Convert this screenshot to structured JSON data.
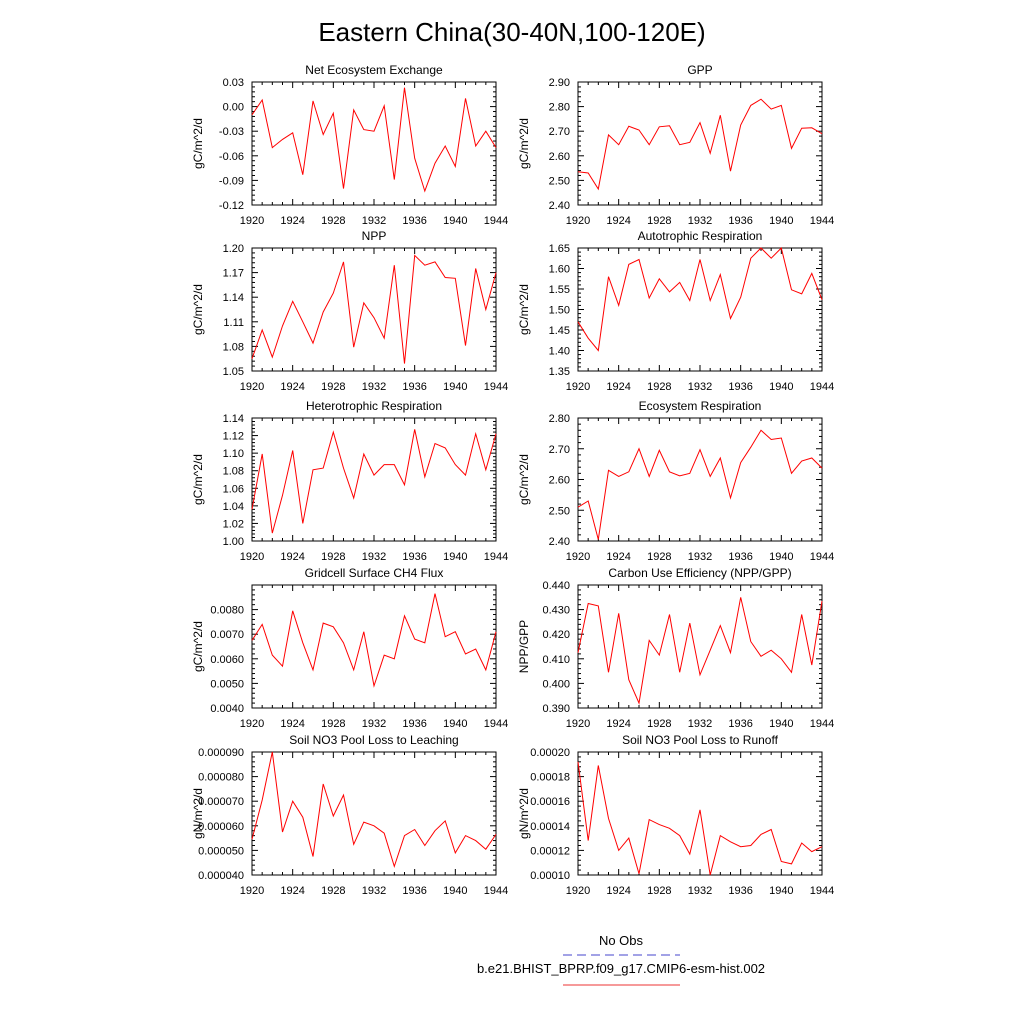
{
  "figure": {
    "title": "Eastern China(30-40N,100-120E)",
    "legend": {
      "entries": [
        {
          "label": "No Obs",
          "color": "#4444cc",
          "dash": true
        },
        {
          "label": "b.e21.BHIST_BPRP.f09_g17.CMIP6-esm-hist.002",
          "color": "#ee3333",
          "dash": false
        }
      ]
    }
  },
  "chart_data": [
    {
      "type": "line",
      "title": "Net Ecosystem Exchange",
      "xlabel": "",
      "ylabel": "gC/m^2/d",
      "xlim": [
        1920,
        1944
      ],
      "ylim": [
        -0.12,
        0.03
      ],
      "yticks": [
        -0.12,
        -0.09,
        -0.06,
        -0.03,
        0.0,
        0.03
      ],
      "yticklabels": [
        "-0.12",
        "-0.09",
        "-0.06",
        "-0.03",
        "0.00",
        "0.03"
      ],
      "xticks": [
        1920,
        1924,
        1928,
        1932,
        1936,
        1940,
        1944
      ],
      "series": [
        {
          "color": "#ff0000",
          "x": [
            1920,
            1921,
            1922,
            1923,
            1924,
            1925,
            1926,
            1927,
            1928,
            1929,
            1930,
            1931,
            1932,
            1933,
            1934,
            1935,
            1936,
            1937,
            1938,
            1939,
            1940,
            1941,
            1942,
            1943,
            1944
          ],
          "values": [
            -0.01,
            0.008,
            -0.05,
            -0.04,
            -0.032,
            -0.083,
            0.007,
            -0.034,
            -0.008,
            -0.1,
            -0.004,
            -0.028,
            -0.03,
            0.001,
            -0.089,
            0.023,
            -0.063,
            -0.103,
            -0.069,
            -0.048,
            -0.073,
            0.01,
            -0.048,
            -0.03,
            -0.05
          ]
        }
      ]
    },
    {
      "type": "line",
      "title": "GPP",
      "xlabel": "",
      "ylabel": "gC/m^2/d",
      "xlim": [
        1920,
        1944
      ],
      "ylim": [
        2.4,
        2.9
      ],
      "yticks": [
        2.4,
        2.5,
        2.6,
        2.7,
        2.8,
        2.9
      ],
      "yticklabels": [
        "2.40",
        "2.50",
        "2.60",
        "2.70",
        "2.80",
        "2.90"
      ],
      "xticks": [
        1920,
        1924,
        1928,
        1932,
        1936,
        1940,
        1944
      ],
      "series": [
        {
          "color": "#ff0000",
          "x": [
            1920,
            1921,
            1922,
            1923,
            1924,
            1925,
            1926,
            1927,
            1928,
            1929,
            1930,
            1931,
            1932,
            1933,
            1934,
            1935,
            1936,
            1937,
            1938,
            1939,
            1940,
            1941,
            1942,
            1943,
            1944
          ],
          "values": [
            2.535,
            2.53,
            2.465,
            2.685,
            2.645,
            2.72,
            2.705,
            2.645,
            2.718,
            2.722,
            2.645,
            2.655,
            2.735,
            2.61,
            2.765,
            2.538,
            2.725,
            2.805,
            2.83,
            2.79,
            2.805,
            2.63,
            2.712,
            2.714,
            2.69
          ]
        }
      ]
    },
    {
      "type": "line",
      "title": "NPP",
      "xlabel": "",
      "ylabel": "gC/m^2/d",
      "xlim": [
        1920,
        1944
      ],
      "ylim": [
        1.05,
        1.2
      ],
      "yticks": [
        1.05,
        1.08,
        1.11,
        1.14,
        1.17,
        1.2
      ],
      "yticklabels": [
        "1.05",
        "1.08",
        "1.11",
        "1.14",
        "1.17",
        "1.20"
      ],
      "xticks": [
        1920,
        1924,
        1928,
        1932,
        1936,
        1940,
        1944
      ],
      "series": [
        {
          "color": "#ff0000",
          "x": [
            1920,
            1921,
            1922,
            1923,
            1924,
            1925,
            1926,
            1927,
            1928,
            1929,
            1930,
            1931,
            1932,
            1933,
            1934,
            1935,
            1936,
            1937,
            1938,
            1939,
            1940,
            1941,
            1942,
            1943,
            1944
          ],
          "values": [
            1.065,
            1.1,
            1.067,
            1.105,
            1.135,
            1.11,
            1.084,
            1.122,
            1.145,
            1.183,
            1.079,
            1.133,
            1.115,
            1.09,
            1.179,
            1.059,
            1.191,
            1.179,
            1.183,
            1.164,
            1.163,
            1.081,
            1.175,
            1.125,
            1.17
          ]
        }
      ]
    },
    {
      "type": "line",
      "title": "Autotrophic Respiration",
      "xlabel": "",
      "ylabel": "gC/m^2/d",
      "xlim": [
        1920,
        1944
      ],
      "ylim": [
        1.35,
        1.65
      ],
      "yticks": [
        1.35,
        1.4,
        1.45,
        1.5,
        1.55,
        1.6,
        1.65
      ],
      "yticklabels": [
        "1.35",
        "1.40",
        "1.45",
        "1.50",
        "1.55",
        "1.60",
        "1.65"
      ],
      "xticks": [
        1920,
        1924,
        1928,
        1932,
        1936,
        1940,
        1944
      ],
      "series": [
        {
          "color": "#ff0000",
          "x": [
            1920,
            1921,
            1922,
            1923,
            1924,
            1925,
            1926,
            1927,
            1928,
            1929,
            1930,
            1931,
            1932,
            1933,
            1934,
            1935,
            1936,
            1937,
            1938,
            1939,
            1940,
            1941,
            1942,
            1943,
            1944
          ],
          "values": [
            1.47,
            1.43,
            1.4,
            1.58,
            1.51,
            1.61,
            1.622,
            1.528,
            1.575,
            1.543,
            1.566,
            1.522,
            1.622,
            1.522,
            1.585,
            1.478,
            1.53,
            1.625,
            1.65,
            1.625,
            1.65,
            1.548,
            1.538,
            1.588,
            1.524
          ]
        }
      ]
    },
    {
      "type": "line",
      "title": "Heterotrophic Respiration",
      "xlabel": "",
      "ylabel": "gC/m^2/d",
      "xlim": [
        1920,
        1944
      ],
      "ylim": [
        1.0,
        1.14
      ],
      "yticks": [
        1.0,
        1.02,
        1.04,
        1.06,
        1.08,
        1.1,
        1.12,
        1.14
      ],
      "yticklabels": [
        "1.00",
        "1.02",
        "1.04",
        "1.06",
        "1.08",
        "1.10",
        "1.12",
        "1.14"
      ],
      "xticks": [
        1920,
        1924,
        1928,
        1932,
        1936,
        1940,
        1944
      ],
      "series": [
        {
          "color": "#ff0000",
          "x": [
            1920,
            1921,
            1922,
            1923,
            1924,
            1925,
            1926,
            1927,
            1928,
            1929,
            1930,
            1931,
            1932,
            1933,
            1934,
            1935,
            1936,
            1937,
            1938,
            1939,
            1940,
            1941,
            1942,
            1943,
            1944
          ],
          "values": [
            1.036,
            1.099,
            1.009,
            1.052,
            1.103,
            1.02,
            1.081,
            1.083,
            1.124,
            1.083,
            1.049,
            1.099,
            1.075,
            1.087,
            1.087,
            1.064,
            1.127,
            1.073,
            1.111,
            1.106,
            1.087,
            1.075,
            1.122,
            1.081,
            1.122
          ]
        }
      ]
    },
    {
      "type": "line",
      "title": "Ecosystem Respiration",
      "xlabel": "",
      "ylabel": "gC/m^2/d",
      "xlim": [
        1920,
        1944
      ],
      "ylim": [
        2.4,
        2.8
      ],
      "yticks": [
        2.4,
        2.5,
        2.6,
        2.7,
        2.8
      ],
      "yticklabels": [
        "2.40",
        "2.50",
        "2.60",
        "2.70",
        "2.80"
      ],
      "xticks": [
        1920,
        1924,
        1928,
        1932,
        1936,
        1940,
        1944
      ],
      "series": [
        {
          "color": "#ff0000",
          "x": [
            1920,
            1921,
            1922,
            1923,
            1924,
            1925,
            1926,
            1927,
            1928,
            1929,
            1930,
            1931,
            1932,
            1933,
            1934,
            1935,
            1936,
            1937,
            1938,
            1939,
            1940,
            1941,
            1942,
            1943,
            1944
          ],
          "values": [
            2.51,
            2.53,
            2.405,
            2.63,
            2.61,
            2.625,
            2.7,
            2.61,
            2.695,
            2.625,
            2.612,
            2.62,
            2.697,
            2.61,
            2.67,
            2.54,
            2.655,
            2.705,
            2.76,
            2.73,
            2.735,
            2.62,
            2.66,
            2.67,
            2.637
          ]
        }
      ]
    },
    {
      "type": "line",
      "title": "Gridcell Surface CH4 Flux",
      "xlabel": "",
      "ylabel": "gC/m^2/d",
      "xlim": [
        1920,
        1944
      ],
      "ylim": [
        0.004,
        0.009
      ],
      "yticks": [
        0.004,
        0.005,
        0.006,
        0.007,
        0.008
      ],
      "yticklabels": [
        "0.0040",
        "0.0050",
        "0.0060",
        "0.0070",
        "0.0080"
      ],
      "xticks": [
        1920,
        1924,
        1928,
        1932,
        1936,
        1940,
        1944
      ],
      "series": [
        {
          "color": "#ff0000",
          "x": [
            1920,
            1921,
            1922,
            1923,
            1924,
            1925,
            1926,
            1927,
            1928,
            1929,
            1930,
            1931,
            1932,
            1933,
            1934,
            1935,
            1936,
            1937,
            1938,
            1939,
            1940,
            1941,
            1942,
            1943,
            1944
          ],
          "values": [
            0.00675,
            0.0074,
            0.00615,
            0.0057,
            0.00795,
            0.00665,
            0.00555,
            0.00745,
            0.0073,
            0.00665,
            0.00555,
            0.0071,
            0.0049,
            0.00615,
            0.006,
            0.00775,
            0.0068,
            0.00665,
            0.00865,
            0.0069,
            0.0071,
            0.0062,
            0.0064,
            0.00555,
            0.0071
          ]
        }
      ]
    },
    {
      "type": "line",
      "title": "Carbon Use Efficiency (NPP/GPP)",
      "xlabel": "",
      "ylabel": "NPP/GPP",
      "xlim": [
        1920,
        1944
      ],
      "ylim": [
        0.39,
        0.44
      ],
      "yticks": [
        0.39,
        0.4,
        0.41,
        0.42,
        0.43,
        0.44
      ],
      "yticklabels": [
        "0.390",
        "0.400",
        "0.410",
        "0.420",
        "0.430",
        "0.440"
      ],
      "xticks": [
        1920,
        1924,
        1928,
        1932,
        1936,
        1940,
        1944
      ],
      "series": [
        {
          "color": "#ff0000",
          "x": [
            1920,
            1921,
            1922,
            1923,
            1924,
            1925,
            1926,
            1927,
            1928,
            1929,
            1930,
            1931,
            1932,
            1933,
            1934,
            1935,
            1936,
            1937,
            1938,
            1939,
            1940,
            1941,
            1942,
            1943,
            1944
          ],
          "values": [
            0.4125,
            0.4325,
            0.4315,
            0.4045,
            0.4285,
            0.4015,
            0.392,
            0.4175,
            0.4115,
            0.428,
            0.4045,
            0.4245,
            0.4035,
            0.4135,
            0.4235,
            0.4125,
            0.435,
            0.417,
            0.411,
            0.4135,
            0.41,
            0.4045,
            0.428,
            0.4075,
            0.4335
          ]
        }
      ]
    },
    {
      "type": "line",
      "title": "Soil NO3 Pool Loss to Leaching",
      "xlabel": "",
      "ylabel": "gN/m^2/d",
      "xlim": [
        1920,
        1944
      ],
      "ylim": [
        4e-05,
        9e-05
      ],
      "yticks": [
        4e-05,
        5e-05,
        6e-05,
        7e-05,
        8e-05,
        9e-05
      ],
      "yticklabels": [
        "0.000040",
        "0.000050",
        "0.000060",
        "0.000070",
        "0.000080",
        "0.000090"
      ],
      "xticks": [
        1920,
        1924,
        1928,
        1932,
        1936,
        1940,
        1944
      ],
      "series": [
        {
          "color": "#ff0000",
          "x": [
            1920,
            1921,
            1922,
            1923,
            1924,
            1925,
            1926,
            1927,
            1928,
            1929,
            1930,
            1931,
            1932,
            1933,
            1934,
            1935,
            1936,
            1937,
            1938,
            1939,
            1940,
            1941,
            1942,
            1943,
            1944
          ],
          "values": [
            5.45e-05,
            7.05e-05,
            9e-05,
            5.75e-05,
            7e-05,
            6.35e-05,
            4.75e-05,
            7.7e-05,
            6.4e-05,
            7.25e-05,
            5.25e-05,
            6.15e-05,
            6e-05,
            5.7e-05,
            4.35e-05,
            5.6e-05,
            5.85e-05,
            5.2e-05,
            5.8e-05,
            6.2e-05,
            4.9e-05,
            5.6e-05,
            5.4e-05,
            5.05e-05,
            5.65e-05
          ]
        }
      ]
    },
    {
      "type": "line",
      "title": "Soil NO3 Pool Loss to Runoff",
      "xlabel": "",
      "ylabel": "gN/m^2/d",
      "xlim": [
        1920,
        1944
      ],
      "ylim": [
        0.0001,
        0.0002
      ],
      "yticks": [
        0.0001,
        0.00012,
        0.00014,
        0.00016,
        0.00018,
        0.0002
      ],
      "yticklabels": [
        "0.00010",
        "0.00012",
        "0.00014",
        "0.00016",
        "0.00018",
        "0.00020"
      ],
      "xticks": [
        1920,
        1924,
        1928,
        1932,
        1936,
        1940,
        1944
      ],
      "series": [
        {
          "color": "#ff0000",
          "x": [
            1920,
            1921,
            1922,
            1923,
            1924,
            1925,
            1926,
            1927,
            1928,
            1929,
            1930,
            1931,
            1932,
            1933,
            1934,
            1935,
            1936,
            1937,
            1938,
            1939,
            1940,
            1941,
            1942,
            1943,
            1944
          ],
          "values": [
            0.000192,
            0.000128,
            0.000189,
            0.000146,
            0.00012,
            0.00013,
            0.000101,
            0.000145,
            0.000141,
            0.000138,
            0.000132,
            0.000117,
            0.000153,
            0.0001,
            0.000132,
            0.000127,
            0.000123,
            0.000124,
            0.000133,
            0.000137,
            0.000111,
            0.000109,
            0.000126,
            0.000119,
            0.000123
          ]
        }
      ]
    }
  ]
}
